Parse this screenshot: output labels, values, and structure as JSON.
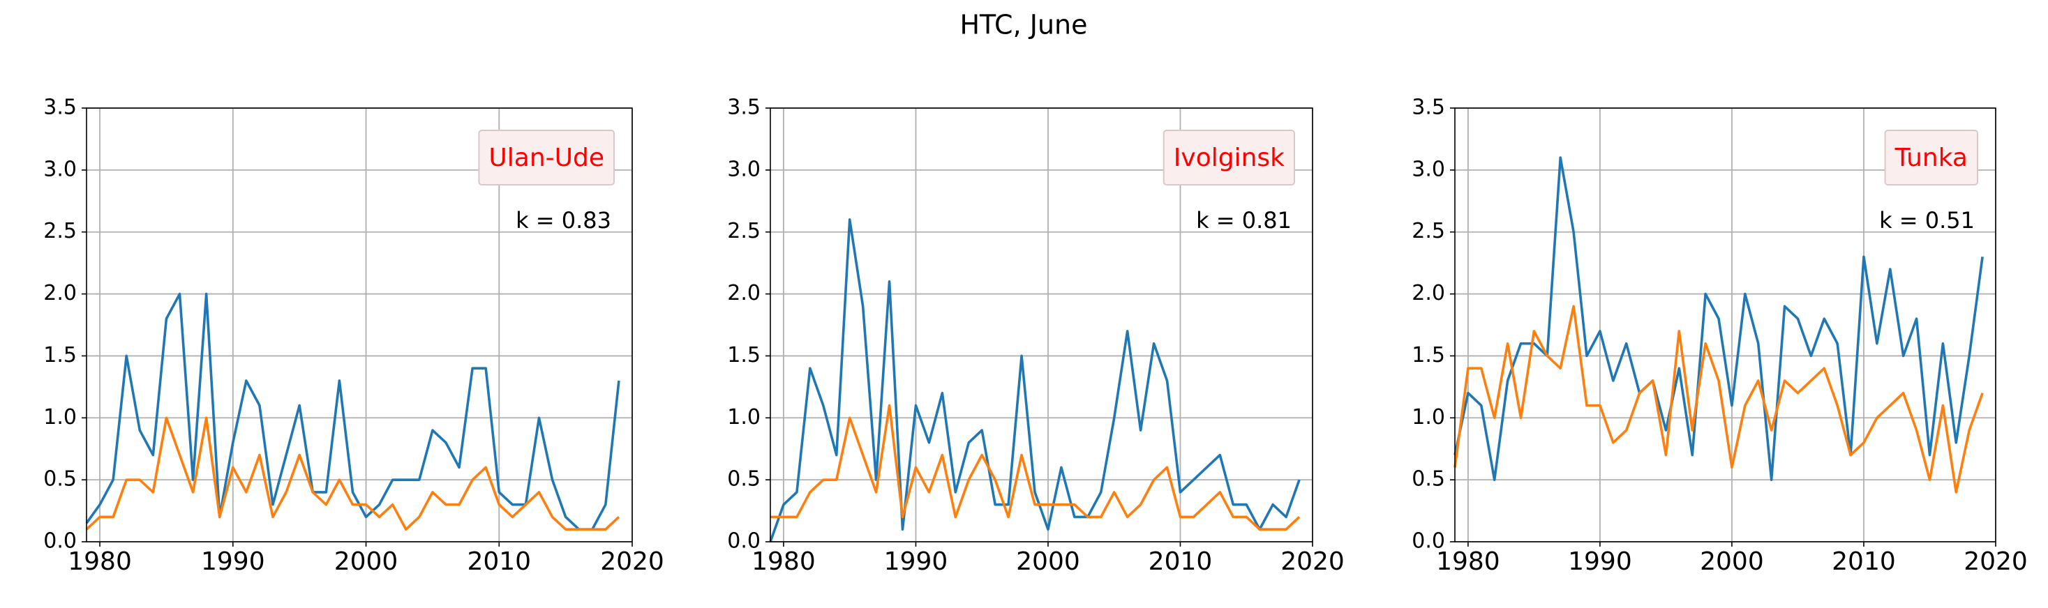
{
  "title": "HTC, June",
  "chart_data": [
    {
      "type": "line",
      "label": "Ulan-Ude",
      "annotation": "k = 0.83",
      "grid": true,
      "x": [
        1979,
        1980,
        1981,
        1982,
        1983,
        1984,
        1985,
        1986,
        1987,
        1988,
        1989,
        1990,
        1991,
        1992,
        1993,
        1994,
        1995,
        1996,
        1997,
        1998,
        1999,
        2000,
        2001,
        2002,
        2003,
        2004,
        2005,
        2006,
        2007,
        2008,
        2009,
        2010,
        2011,
        2012,
        2013,
        2014,
        2015,
        2016,
        2017,
        2018,
        2019
      ],
      "series": [
        {
          "color": "#1f77b4",
          "values": [
            0.15,
            0.3,
            0.5,
            1.5,
            0.9,
            0.7,
            1.8,
            2.0,
            0.5,
            2.0,
            0.2,
            0.8,
            1.3,
            1.1,
            0.3,
            0.7,
            1.1,
            0.4,
            0.4,
            1.3,
            0.4,
            0.2,
            0.3,
            0.5,
            0.5,
            0.5,
            0.9,
            0.8,
            0.6,
            1.4,
            1.4,
            0.4,
            0.3,
            0.3,
            1.0,
            0.5,
            0.2,
            0.1,
            0.1,
            0.3,
            1.3
          ]
        },
        {
          "color": "#ff7f0e",
          "values": [
            0.1,
            0.2,
            0.2,
            0.5,
            0.5,
            0.4,
            1.0,
            0.7,
            0.4,
            1.0,
            0.2,
            0.6,
            0.4,
            0.7,
            0.2,
            0.4,
            0.7,
            0.4,
            0.3,
            0.5,
            0.3,
            0.3,
            0.2,
            0.3,
            0.1,
            0.2,
            0.4,
            0.3,
            0.3,
            0.5,
            0.6,
            0.3,
            0.2,
            0.3,
            0.4,
            0.2,
            0.1,
            0.1,
            0.1,
            0.1,
            0.2
          ]
        }
      ],
      "xlim": [
        1979,
        2020
      ],
      "xticks": [
        1980,
        1990,
        2000,
        2010,
        2020
      ],
      "ylim": [
        0,
        3.5
      ],
      "yticks": [
        {
          "value": 0,
          "label": "0.0"
        },
        0.5,
        {
          "value": 1,
          "label": "1.0"
        },
        1.5,
        {
          "value": 2,
          "label": "2.0"
        },
        2.5,
        {
          "value": 3,
          "label": "3.0"
        },
        3.5
      ]
    },
    {
      "type": "line",
      "label": "Ivolginsk",
      "annotation": "k = 0.81",
      "grid": true,
      "x": [
        1979,
        1980,
        1981,
        1982,
        1983,
        1984,
        1985,
        1986,
        1987,
        1988,
        1989,
        1990,
        1991,
        1992,
        1993,
        1994,
        1995,
        1996,
        1997,
        1998,
        1999,
        2000,
        2001,
        2002,
        2003,
        2004,
        2005,
        2006,
        2007,
        2008,
        2009,
        2010,
        2011,
        2012,
        2013,
        2014,
        2015,
        2016,
        2017,
        2018,
        2019
      ],
      "series": [
        {
          "color": "#1f77b4",
          "values": [
            0.0,
            0.3,
            0.4,
            1.4,
            1.1,
            0.7,
            2.6,
            1.9,
            0.5,
            2.1,
            0.1,
            1.1,
            0.8,
            1.2,
            0.4,
            0.8,
            0.9,
            0.3,
            0.3,
            1.5,
            0.4,
            0.1,
            0.6,
            0.2,
            0.2,
            0.4,
            1.0,
            1.7,
            0.9,
            1.6,
            1.3,
            0.4,
            0.5,
            0.6,
            0.7,
            0.3,
            0.3,
            0.1,
            0.3,
            0.2,
            0.5
          ]
        },
        {
          "color": "#ff7f0e",
          "values": [
            0.2,
            0.2,
            0.2,
            0.4,
            0.5,
            0.5,
            1.0,
            0.7,
            0.4,
            1.1,
            0.2,
            0.6,
            0.4,
            0.7,
            0.2,
            0.5,
            0.7,
            0.5,
            0.2,
            0.7,
            0.3,
            0.3,
            0.3,
            0.3,
            0.2,
            0.2,
            0.4,
            0.2,
            0.3,
            0.5,
            0.6,
            0.2,
            0.2,
            0.3,
            0.4,
            0.2,
            0.2,
            0.1,
            0.1,
            0.1,
            0.2
          ]
        }
      ],
      "xlim": [
        1979,
        2020
      ],
      "xticks": [
        1980,
        1990,
        2000,
        2010,
        2020
      ],
      "ylim": [
        0,
        3.5
      ],
      "yticks": [
        {
          "value": 0,
          "label": "0.0"
        },
        0.5,
        {
          "value": 1,
          "label": "1.0"
        },
        1.5,
        {
          "value": 2,
          "label": "2.0"
        },
        2.5,
        {
          "value": 3,
          "label": "3.0"
        },
        3.5
      ]
    },
    {
      "type": "line",
      "label": "Tunka",
      "annotation": "k = 0.51",
      "grid": true,
      "x": [
        1979,
        1980,
        1981,
        1982,
        1983,
        1984,
        1985,
        1986,
        1987,
        1988,
        1989,
        1990,
        1991,
        1992,
        1993,
        1994,
        1995,
        1996,
        1997,
        1998,
        1999,
        2000,
        2001,
        2002,
        2003,
        2004,
        2005,
        2006,
        2007,
        2008,
        2009,
        2010,
        2011,
        2012,
        2013,
        2014,
        2015,
        2016,
        2017,
        2018,
        2019
      ],
      "series": [
        {
          "color": "#1f77b4",
          "values": [
            0.7,
            1.2,
            1.1,
            0.5,
            1.3,
            1.6,
            1.6,
            1.5,
            3.1,
            2.5,
            1.5,
            1.7,
            1.3,
            1.6,
            1.2,
            1.3,
            0.9,
            1.4,
            0.7,
            2.0,
            1.8,
            1.1,
            2.0,
            1.6,
            0.5,
            1.9,
            1.8,
            1.5,
            1.8,
            1.6,
            0.7,
            2.3,
            1.6,
            2.2,
            1.5,
            1.8,
            0.7,
            1.6,
            0.8,
            1.5,
            2.3
          ]
        },
        {
          "color": "#ff7f0e",
          "values": [
            0.6,
            1.4,
            1.4,
            1.0,
            1.6,
            1.0,
            1.7,
            1.5,
            1.4,
            1.9,
            1.1,
            1.1,
            0.8,
            0.9,
            1.2,
            1.3,
            0.7,
            1.7,
            0.9,
            1.6,
            1.3,
            0.6,
            1.1,
            1.3,
            0.9,
            1.3,
            1.2,
            1.3,
            1.4,
            1.1,
            0.7,
            0.8,
            1.0,
            1.1,
            1.2,
            0.9,
            0.5,
            1.1,
            0.4,
            0.9,
            1.2
          ]
        }
      ],
      "xlim": [
        1979,
        2020
      ],
      "xticks": [
        1980,
        1990,
        2000,
        2010,
        2020
      ],
      "ylim": [
        0,
        3.5
      ],
      "yticks": [
        {
          "value": 0,
          "label": "0.0"
        },
        0.5,
        {
          "value": 1,
          "label": "1.0"
        },
        1.5,
        {
          "value": 2,
          "label": "2.0"
        },
        2.5,
        {
          "value": 3,
          "label": "3.0"
        },
        3.5
      ]
    }
  ]
}
